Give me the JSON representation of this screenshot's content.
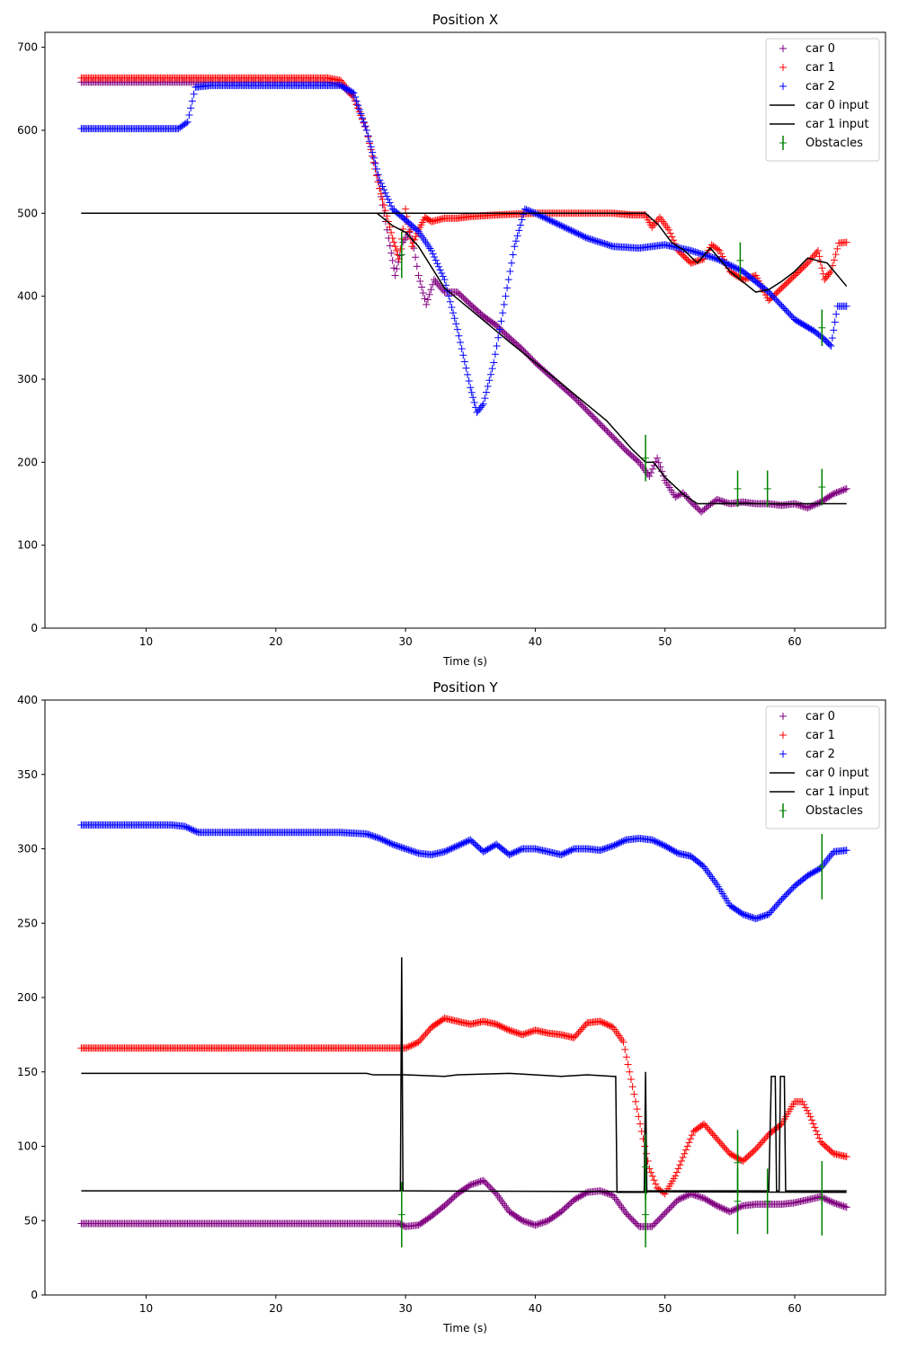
{
  "chart_data": [
    {
      "type": "scatter",
      "title": "Position X",
      "xlabel": "Time (s)",
      "ylabel": "",
      "xlim": [
        2.2,
        67
      ],
      "ylim": [
        0,
        718
      ],
      "xticks": [
        "10",
        "20",
        "30",
        "40",
        "50",
        "60"
      ],
      "yticks": [
        "0",
        "100",
        "200",
        "300",
        "400",
        "500",
        "600",
        "700"
      ],
      "legend_position": "top-right",
      "series": [
        {
          "name": "car 0",
          "kind": "marker",
          "color": "#800080",
          "x": [
            5,
            10,
            15,
            20,
            24,
            25,
            26,
            27,
            28,
            28.7,
            29.2,
            29.8,
            30.4,
            31,
            31.6,
            32.2,
            33,
            34,
            35,
            36,
            37,
            38,
            39,
            40,
            41,
            42,
            43,
            44,
            45,
            46,
            47,
            48,
            48.8,
            49.4,
            50,
            50.8,
            51.4,
            52,
            52.8,
            53.4,
            54,
            55,
            56,
            57,
            58,
            59,
            60,
            61,
            62,
            63,
            64
          ],
          "y": [
            658,
            658,
            658,
            658,
            658,
            655,
            640,
            600,
            530,
            470,
            425,
            465,
            480,
            425,
            390,
            420,
            405,
            405,
            390,
            376,
            365,
            350,
            336,
            320,
            306,
            292,
            278,
            262,
            246,
            230,
            214,
            200,
            183,
            205,
            178,
            158,
            163,
            152,
            140,
            148,
            155,
            150,
            152,
            150,
            150,
            148,
            150,
            145,
            152,
            162,
            168
          ]
        },
        {
          "name": "car 1",
          "kind": "marker",
          "color": "#ff0000",
          "x": [
            5,
            10,
            15,
            20,
            24,
            25,
            26,
            27,
            28,
            29,
            29.5,
            30,
            30.5,
            31,
            31.5,
            32,
            33,
            34,
            35,
            37,
            40,
            43,
            46,
            47.5,
            48.5,
            49,
            49.6,
            50.3,
            51,
            52,
            53,
            53.6,
            54.2,
            55,
            56,
            57,
            58,
            59,
            60,
            61,
            61.8,
            62.3,
            62.8,
            63.4,
            64
          ],
          "y": [
            663,
            663,
            663,
            663,
            663,
            660,
            640,
            600,
            530,
            470,
            445,
            505,
            460,
            480,
            495,
            490,
            494,
            494,
            496,
            498,
            500,
            500,
            500,
            498,
            498,
            483,
            495,
            480,
            455,
            440,
            445,
            462,
            455,
            430,
            420,
            425,
            395,
            410,
            425,
            440,
            455,
            420,
            430,
            464,
            465
          ]
        },
        {
          "name": "car 2",
          "kind": "marker",
          "color": "#0000ff",
          "x": [
            5,
            8,
            10,
            12.5,
            13.2,
            13.8,
            15,
            20,
            25,
            26,
            27,
            28,
            29,
            30,
            31,
            32,
            33,
            34,
            35,
            35.5,
            36,
            36.8,
            37.6,
            38.4,
            39.2,
            40,
            42,
            44,
            46,
            48,
            50,
            52,
            54,
            56,
            58,
            60,
            61.5,
            62.3,
            62.8,
            63.3,
            64
          ],
          "y": [
            602,
            602,
            602,
            602,
            610,
            652,
            654,
            654,
            654,
            645,
            600,
            540,
            505,
            492,
            478,
            455,
            420,
            360,
            290,
            260,
            270,
            320,
            390,
            460,
            505,
            500,
            485,
            470,
            460,
            458,
            462,
            455,
            445,
            430,
            405,
            372,
            358,
            348,
            340,
            388,
            388
          ]
        },
        {
          "name": "car 0 input",
          "kind": "line",
          "color": "#000000",
          "x": [
            5,
            27.8,
            29,
            30,
            31,
            33,
            38,
            42,
            45.5,
            47.5,
            48.5,
            49.1,
            50,
            51.5,
            52.5,
            64
          ],
          "y": [
            500,
            500,
            485,
            477,
            460,
            410,
            345,
            295,
            250,
            215,
            200,
            200,
            182,
            160,
            150,
            150
          ]
        },
        {
          "name": "car 1 input",
          "kind": "line",
          "color": "#000000",
          "x": [
            5,
            40,
            48.5,
            49.5,
            50.5,
            51.5,
            52.5,
            53.5,
            55,
            57,
            58,
            59,
            60,
            61,
            62.5,
            64
          ],
          "y": [
            500,
            500,
            500,
            486,
            465,
            455,
            440,
            458,
            430,
            405,
            408,
            418,
            430,
            446,
            440,
            412
          ]
        },
        {
          "name": "Obstacles",
          "kind": "errorbar",
          "color": "#008000",
          "x": [
            29.7,
            48.5,
            55.6,
            57.9,
            62.1,
            55.8,
            62.1
          ],
          "y": [
            450,
            205,
            168,
            168,
            170,
            443,
            362
          ],
          "err": [
            28,
            28,
            22,
            22,
            22,
            22,
            22
          ]
        }
      ]
    },
    {
      "type": "scatter",
      "title": "Position Y",
      "xlabel": "Time (s)",
      "ylabel": "",
      "xlim": [
        2.2,
        67
      ],
      "ylim": [
        0,
        400
      ],
      "xticks": [
        "10",
        "20",
        "30",
        "40",
        "50",
        "60"
      ],
      "yticks": [
        "0",
        "50",
        "100",
        "150",
        "200",
        "250",
        "300",
        "350",
        "400"
      ],
      "legend_position": "top-right",
      "series": [
        {
          "name": "car 0",
          "kind": "marker",
          "color": "#800080",
          "x": [
            5,
            10,
            20,
            29.5,
            30,
            31,
            32,
            33,
            34,
            35,
            36,
            37,
            38,
            39,
            40,
            41,
            42,
            43,
            44,
            45,
            46,
            47,
            48,
            49,
            50,
            51,
            52,
            53,
            54,
            55,
            56,
            57,
            58,
            59,
            60,
            61,
            62,
            63,
            64
          ],
          "y": [
            48,
            48,
            48,
            48,
            46,
            47,
            53,
            60,
            68,
            74,
            77,
            68,
            56,
            50,
            47,
            50,
            56,
            64,
            69,
            70,
            67,
            55,
            46,
            46,
            55,
            64,
            68,
            65,
            60,
            56,
            60,
            61,
            61,
            61,
            62,
            64,
            66,
            62,
            59
          ]
        },
        {
          "name": "car 1",
          "kind": "marker",
          "color": "#ff0000",
          "x": [
            5,
            10,
            20,
            29,
            30,
            31,
            32,
            33,
            34,
            35,
            36,
            37,
            38,
            39,
            40,
            41,
            42,
            43,
            44,
            45,
            46,
            46.8,
            47.5,
            48.2,
            48.8,
            49.4,
            50,
            50.8,
            51.5,
            52.2,
            53,
            54,
            55,
            56,
            57,
            58,
            59,
            60,
            60.6,
            61.2,
            62,
            63,
            64
          ],
          "y": [
            166,
            166,
            166,
            166,
            166,
            170,
            180,
            186,
            184,
            182,
            184,
            182,
            178,
            175,
            178,
            176,
            175,
            173,
            183,
            184,
            180,
            170,
            140,
            110,
            85,
            72,
            68,
            80,
            95,
            110,
            115,
            105,
            95,
            90,
            98,
            108,
            115,
            130,
            130,
            120,
            103,
            95,
            93
          ]
        },
        {
          "name": "car 2",
          "kind": "marker",
          "color": "#0000ff",
          "x": [
            5,
            8,
            10,
            12,
            13,
            14,
            16,
            20,
            25,
            27,
            28,
            29,
            30,
            31,
            32,
            33,
            34,
            35,
            36,
            37,
            38,
            39,
            40,
            41,
            42,
            43,
            44,
            45,
            46,
            47,
            48,
            49,
            50,
            51,
            52,
            53,
            54,
            55,
            56,
            57,
            58,
            59,
            60,
            61,
            62,
            63,
            64
          ],
          "y": [
            316,
            316,
            316,
            316,
            315,
            311,
            311,
            311,
            311,
            310,
            307,
            303,
            300,
            297,
            296,
            298,
            302,
            306,
            298,
            303,
            296,
            300,
            300,
            298,
            296,
            300,
            300,
            299,
            302,
            306,
            307,
            306,
            302,
            297,
            295,
            288,
            276,
            262,
            256,
            253,
            256,
            266,
            275,
            282,
            287,
            298,
            299
          ]
        },
        {
          "name": "car 0 input",
          "kind": "line",
          "color": "#000000",
          "x": [
            5,
            29.6,
            29.7,
            29.8,
            29.9,
            64
          ],
          "y": [
            70,
            70,
            227,
            70,
            70,
            69
          ]
        },
        {
          "name": "car 1 input",
          "kind": "line",
          "color": "#000000",
          "x": [
            5,
            20,
            27,
            27.5,
            29,
            30,
            33,
            34,
            38,
            42,
            44,
            46,
            46.2,
            46.3,
            48.4,
            48.5,
            48.6,
            48.7,
            50,
            58,
            58.2,
            58.5,
            58.6,
            58.8,
            58.9,
            59.2,
            59.3,
            64
          ],
          "y": [
            149,
            149,
            149,
            148,
            148,
            148,
            147,
            148,
            149,
            147,
            148,
            147,
            147,
            69,
            69,
            150,
            69,
            70,
            70,
            70,
            147,
            147,
            70,
            70,
            147,
            147,
            70,
            70
          ]
        },
        {
          "name": "Obstacles",
          "kind": "errorbar",
          "color": "#008000",
          "x": [
            29.7,
            48.5,
            55.6,
            57.9,
            62.1,
            48.5,
            55.6,
            62.1
          ],
          "y": [
            54,
            54,
            63,
            63,
            65,
            86,
            89,
            288
          ],
          "err": [
            22,
            22,
            22,
            22,
            25,
            22,
            22,
            22
          ]
        }
      ]
    }
  ]
}
